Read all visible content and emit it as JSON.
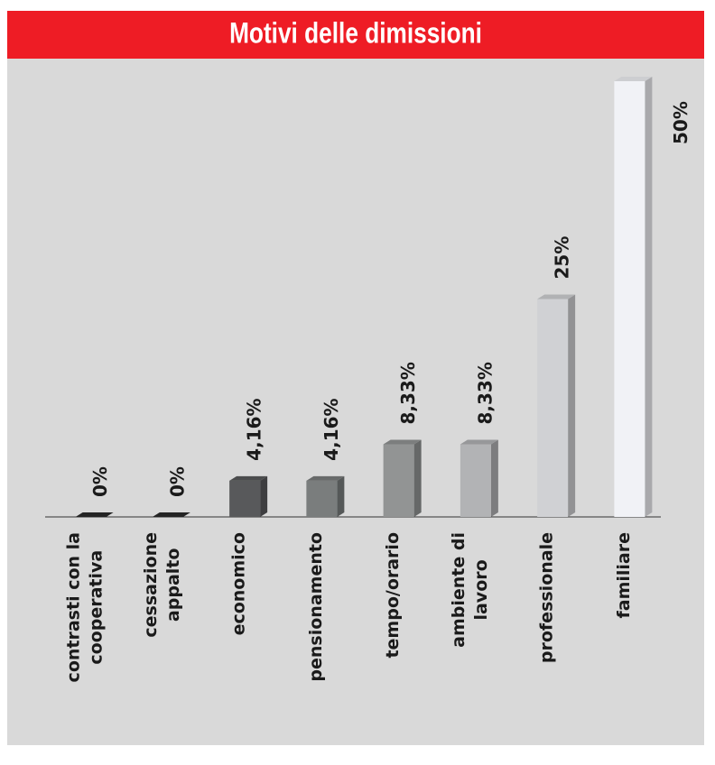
{
  "chart_data": {
    "type": "bar",
    "title": "Motivi delle dimissioni",
    "categories": [
      [
        "contrasti con la",
        "cooperativa"
      ],
      [
        "cessazione",
        "appalto"
      ],
      [
        "economico"
      ],
      [
        "pensionamento"
      ],
      [
        "tempo/orario"
      ],
      [
        "ambiente di",
        "lavoro"
      ],
      [
        "professionale"
      ],
      [
        "familiare"
      ]
    ],
    "values": [
      0,
      0,
      4.16,
      4.16,
      8.33,
      8.33,
      25,
      50
    ],
    "value_labels": [
      "0%",
      "0%",
      "4,16%",
      "4,16%",
      "8,33%",
      "8,33%",
      "25%",
      "50%"
    ],
    "colors": [
      "#2a2a2a",
      "#2a2a2a",
      "#58595b",
      "#7a7d7d",
      "#929494",
      "#b2b3b5",
      "#d0d1d4",
      "#f1f2f6"
    ],
    "ylim": [
      0,
      50
    ]
  }
}
